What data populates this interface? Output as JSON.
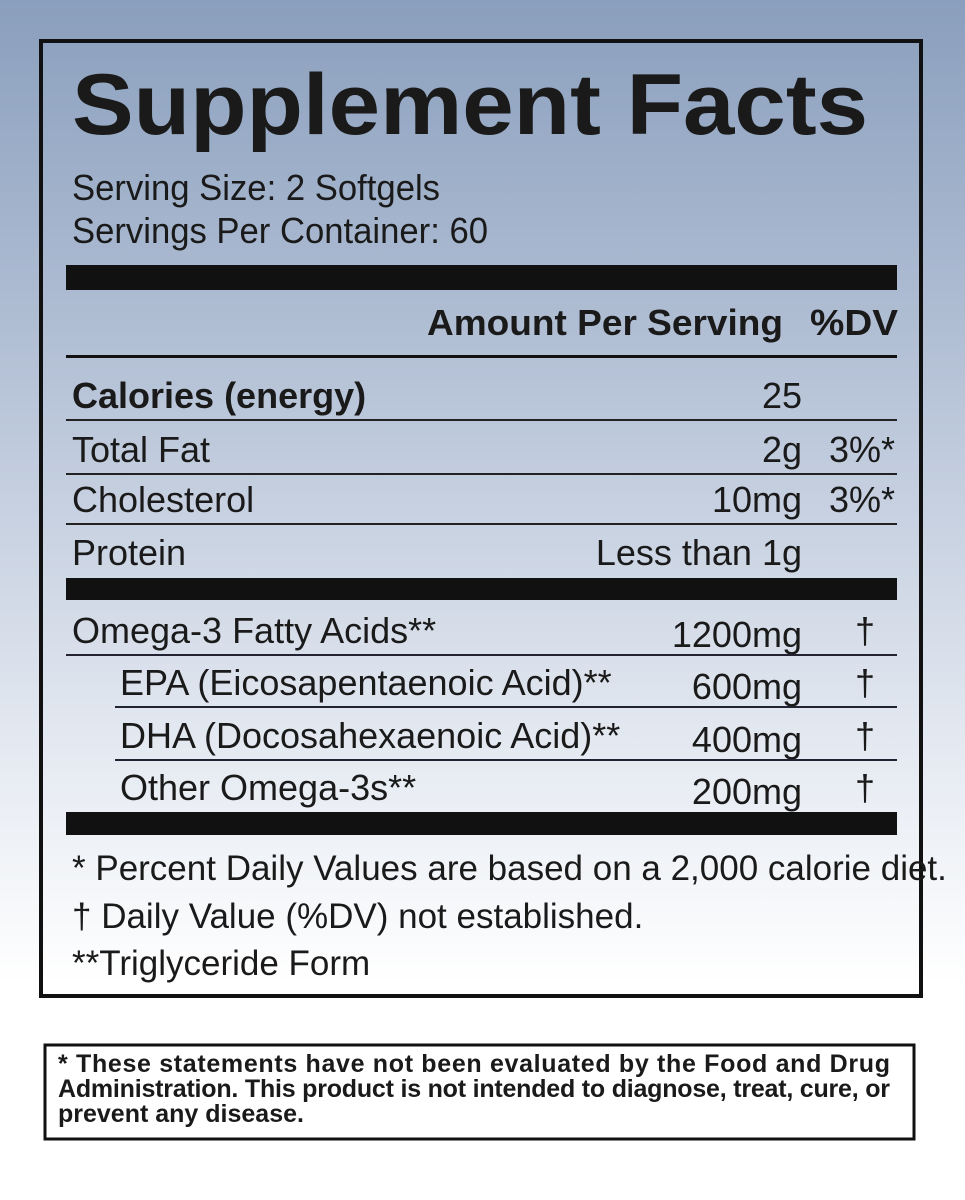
{
  "label": {
    "title": "Supplement Facts",
    "serving_size": "Serving Size: 2 Softgels",
    "servings_per_container": "Servings Per Container: 60",
    "header": {
      "amount": "Amount Per Serving",
      "dv": "%DV"
    },
    "nutrients": [
      {
        "name": "Calories (energy)",
        "amount": "25"
      },
      {
        "name": "Total Fat",
        "amount": "2g",
        "dv": "3%*"
      },
      {
        "name": "Cholesterol",
        "amount": "10mg",
        "dv": "3%*"
      },
      {
        "name": "Protein",
        "amount": "Less than 1g"
      }
    ],
    "fatty_acids": [
      {
        "name": "Omega-3 Fatty Acids**",
        "amount": "1200mg",
        "dv": "†"
      },
      {
        "name": "EPA (Eicosapentaenoic Acid)**",
        "amount": "600mg",
        "dv": "†"
      },
      {
        "name": "DHA (Docosahexaenoic Acid)**",
        "amount": "400mg",
        "dv": "†"
      },
      {
        "name": "Other Omega-3s**",
        "amount": "200mg",
        "dv": "†"
      }
    ],
    "footnotes": [
      "* Percent Daily Values are based on a 2,000 calorie diet.",
      "† Daily Value (%DV) not established.",
      "**Triglyceride Form"
    ]
  },
  "disclaimer": [
    "* These statements have not been evaluated by the Food and Drug",
    "Administration. This product is not intended to diagnose, treat, cure, or",
    "prevent any disease."
  ]
}
